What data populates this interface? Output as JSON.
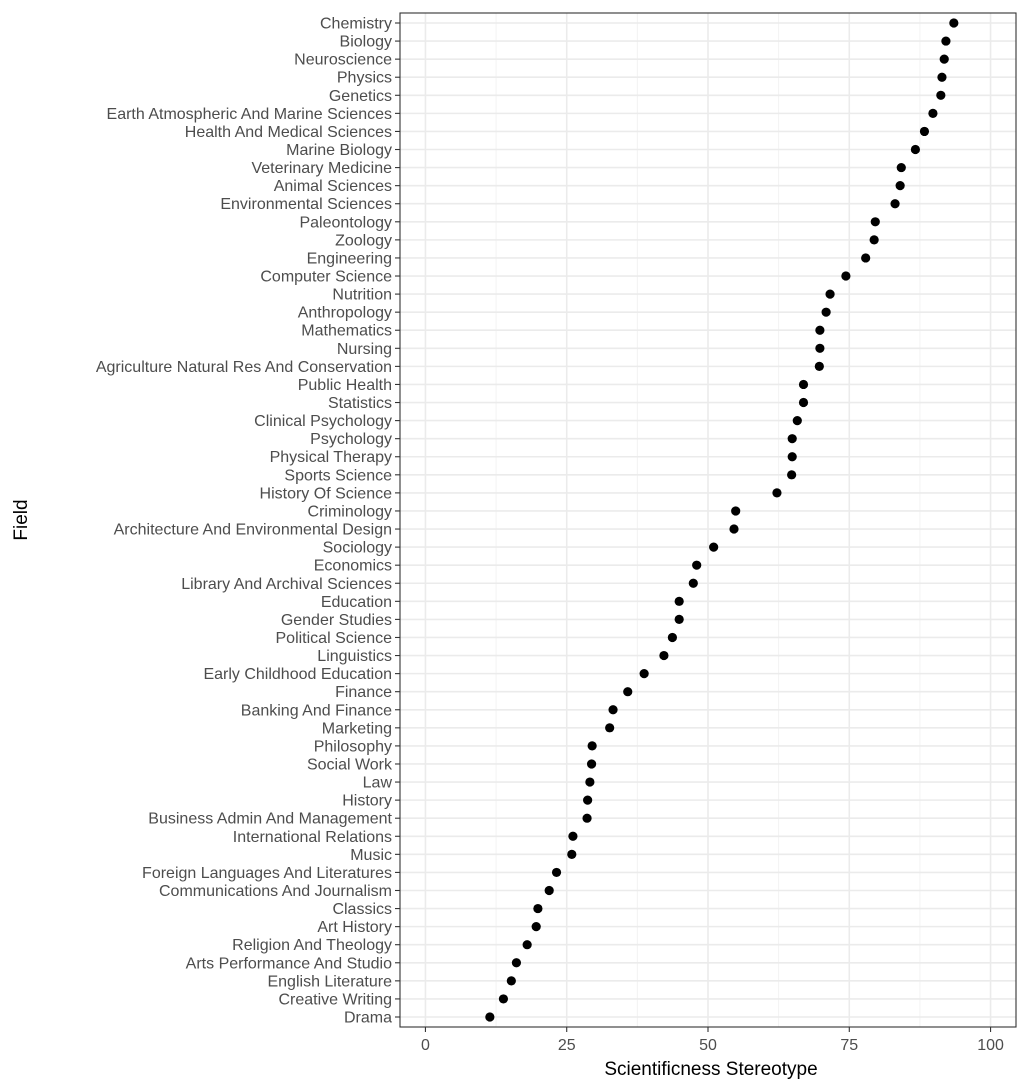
{
  "chart_data": {
    "type": "scatter",
    "xlabel": "Scientificness Stereotype",
    "ylabel": "Field",
    "xlim": [
      -4.5,
      104.5
    ],
    "xticks": [
      "0",
      "25",
      "50",
      "75",
      "100"
    ],
    "grid": true,
    "legend": "none",
    "colors": {
      "point": "#000000",
      "grid_major": "#ebebeb",
      "grid_minor": "#f2f2f2",
      "panel_border": "#333333",
      "tick_label": "#4d4d4d"
    },
    "points": [
      {
        "field": "Chemistry",
        "value": 93.5
      },
      {
        "field": "Biology",
        "value": 92.1
      },
      {
        "field": "Neuroscience",
        "value": 91.8
      },
      {
        "field": "Physics",
        "value": 91.4
      },
      {
        "field": "Genetics",
        "value": 91.2
      },
      {
        "field": "Earth Atmospheric And Marine Sciences",
        "value": 89.8
      },
      {
        "field": "Health And Medical Sciences",
        "value": 88.3
      },
      {
        "field": "Marine Biology",
        "value": 86.7
      },
      {
        "field": "Veterinary Medicine",
        "value": 84.2
      },
      {
        "field": "Animal Sciences",
        "value": 84.0
      },
      {
        "field": "Environmental Sciences",
        "value": 83.1
      },
      {
        "field": "Paleontology",
        "value": 79.6
      },
      {
        "field": "Zoology",
        "value": 79.4
      },
      {
        "field": "Engineering",
        "value": 77.9
      },
      {
        "field": "Computer Science",
        "value": 74.4
      },
      {
        "field": "Nutrition",
        "value": 71.6
      },
      {
        "field": "Anthropology",
        "value": 70.9
      },
      {
        "field": "Mathematics",
        "value": 69.8
      },
      {
        "field": "Nursing",
        "value": 69.8
      },
      {
        "field": "Agriculture Natural Res And Conservation",
        "value": 69.7
      },
      {
        "field": "Public Health",
        "value": 66.9
      },
      {
        "field": "Statistics",
        "value": 66.9
      },
      {
        "field": "Clinical Psychology",
        "value": 65.8
      },
      {
        "field": "Psychology",
        "value": 64.9
      },
      {
        "field": "Physical Therapy",
        "value": 64.9
      },
      {
        "field": "Sports Science",
        "value": 64.8
      },
      {
        "field": "History Of Science",
        "value": 62.2
      },
      {
        "field": "Criminology",
        "value": 54.9
      },
      {
        "field": "Architecture And Environmental Design",
        "value": 54.6
      },
      {
        "field": "Sociology",
        "value": 51.0
      },
      {
        "field": "Economics",
        "value": 48.0
      },
      {
        "field": "Library And Archival Sciences",
        "value": 47.4
      },
      {
        "field": "Education",
        "value": 44.9
      },
      {
        "field": "Gender Studies",
        "value": 44.9
      },
      {
        "field": "Political Science",
        "value": 43.7
      },
      {
        "field": "Linguistics",
        "value": 42.2
      },
      {
        "field": "Early Childhood Education",
        "value": 38.7
      },
      {
        "field": "Finance",
        "value": 35.8
      },
      {
        "field": "Banking And Finance",
        "value": 33.2
      },
      {
        "field": "Marketing",
        "value": 32.6
      },
      {
        "field": "Philosophy",
        "value": 29.5
      },
      {
        "field": "Social Work",
        "value": 29.4
      },
      {
        "field": "Law",
        "value": 29.1
      },
      {
        "field": "History",
        "value": 28.7
      },
      {
        "field": "Business Admin And Management",
        "value": 28.6
      },
      {
        "field": "International Relations",
        "value": 26.1
      },
      {
        "field": "Music",
        "value": 25.9
      },
      {
        "field": "Foreign Languages And Literatures",
        "value": 23.2
      },
      {
        "field": "Communications And Journalism",
        "value": 21.9
      },
      {
        "field": "Classics",
        "value": 19.9
      },
      {
        "field": "Art History",
        "value": 19.6
      },
      {
        "field": "Religion And Theology",
        "value": 18.0
      },
      {
        "field": "Arts Performance And Studio",
        "value": 16.1
      },
      {
        "field": "English Literature",
        "value": 15.2
      },
      {
        "field": "Creative Writing",
        "value": 13.8
      },
      {
        "field": "Drama",
        "value": 11.4
      }
    ]
  }
}
